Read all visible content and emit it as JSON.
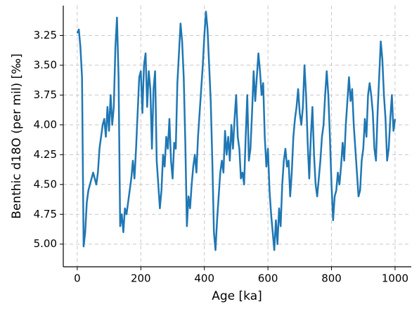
{
  "chart_data": {
    "type": "line",
    "xlabel": "Age [ka]",
    "ylabel": "Benthic d18O (per mil) [‰]",
    "color": "#1f77b4",
    "grid": true,
    "xlim": [
      -44,
      1051
    ],
    "ylim": [
      5.19,
      3.0
    ],
    "xticks": [
      0,
      200,
      400,
      600,
      800,
      1000
    ],
    "yticks": [
      3.25,
      {
        "value": 3.5,
        "label": "3.50"
      },
      3.75,
      {
        "value": 4.0,
        "label": "4.00"
      },
      4.25,
      {
        "value": 4.5,
        "label": "4.50"
      },
      4.75,
      {
        "value": 5.0,
        "label": "5.00"
      }
    ],
    "x": [
      0,
      5,
      10,
      15,
      20,
      25,
      30,
      35,
      40,
      45,
      50,
      55,
      60,
      65,
      70,
      75,
      80,
      85,
      90,
      95,
      100,
      105,
      110,
      115,
      120,
      125,
      130,
      135,
      140,
      145,
      150,
      155,
      160,
      165,
      170,
      175,
      180,
      185,
      190,
      195,
      200,
      205,
      210,
      215,
      220,
      225,
      230,
      235,
      240,
      245,
      250,
      255,
      260,
      265,
      270,
      275,
      280,
      285,
      290,
      295,
      300,
      305,
      310,
      315,
      320,
      325,
      330,
      335,
      340,
      345,
      350,
      355,
      360,
      365,
      370,
      375,
      380,
      385,
      390,
      395,
      400,
      405,
      410,
      415,
      420,
      425,
      430,
      435,
      440,
      445,
      450,
      455,
      460,
      465,
      470,
      475,
      480,
      485,
      490,
      495,
      500,
      505,
      510,
      515,
      520,
      525,
      530,
      535,
      540,
      545,
      550,
      555,
      560,
      565,
      570,
      575,
      580,
      585,
      590,
      595,
      600,
      605,
      610,
      615,
      620,
      625,
      630,
      635,
      640,
      645,
      650,
      655,
      660,
      665,
      670,
      675,
      680,
      685,
      690,
      695,
      700,
      705,
      710,
      715,
      720,
      725,
      730,
      735,
      740,
      745,
      750,
      755,
      760,
      765,
      770,
      775,
      780,
      785,
      790,
      795,
      800,
      805,
      810,
      815,
      820,
      825,
      830,
      835,
      840,
      845,
      850,
      855,
      860,
      865,
      870,
      875,
      880,
      885,
      890,
      895,
      900,
      905,
      910,
      915,
      920,
      925,
      930,
      935,
      940,
      945,
      950,
      955,
      960,
      965,
      970,
      975,
      980,
      985,
      990,
      995,
      1000
    ],
    "values": [
      3.23,
      3.2,
      3.35,
      3.6,
      5.02,
      4.9,
      4.65,
      4.55,
      4.5,
      4.45,
      4.4,
      4.45,
      4.5,
      4.4,
      4.2,
      4.1,
      4.0,
      3.95,
      4.1,
      3.85,
      4.05,
      3.75,
      4.0,
      3.85,
      3.35,
      3.1,
      3.6,
      4.85,
      4.75,
      4.9,
      4.7,
      4.75,
      4.65,
      4.55,
      4.45,
      4.3,
      4.45,
      4.2,
      3.9,
      3.6,
      3.55,
      3.9,
      3.5,
      3.4,
      3.85,
      3.55,
      3.7,
      4.2,
      3.7,
      3.55,
      4.3,
      4.5,
      4.7,
      4.55,
      4.25,
      4.35,
      4.1,
      4.2,
      3.95,
      4.3,
      4.45,
      4.15,
      4.2,
      3.65,
      3.4,
      3.15,
      3.3,
      3.6,
      4.15,
      4.85,
      4.6,
      4.7,
      4.5,
      4.35,
      4.25,
      4.4,
      4.1,
      3.9,
      3.7,
      3.5,
      3.25,
      3.05,
      3.2,
      3.5,
      3.8,
      4.3,
      4.9,
      5.05,
      4.8,
      4.6,
      4.4,
      4.3,
      4.4,
      4.05,
      4.25,
      4.1,
      4.3,
      4.0,
      4.2,
      3.95,
      3.75,
      4.1,
      4.2,
      4.45,
      4.4,
      4.5,
      4.1,
      3.75,
      4.3,
      4.2,
      3.9,
      3.55,
      3.8,
      3.6,
      3.4,
      3.55,
      3.75,
      3.65,
      4.1,
      4.35,
      4.2,
      4.55,
      4.75,
      4.9,
      5.05,
      4.8,
      5.0,
      4.7,
      4.85,
      4.5,
      4.3,
      4.2,
      4.35,
      4.3,
      4.6,
      4.4,
      4.1,
      3.95,
      3.85,
      3.7,
      3.9,
      4.0,
      3.85,
      3.5,
      3.75,
      4.15,
      4.45,
      4.1,
      3.85,
      4.25,
      4.5,
      4.6,
      4.45,
      4.3,
      4.1,
      4.0,
      3.75,
      3.55,
      3.75,
      4.1,
      4.5,
      4.8,
      4.6,
      4.55,
      4.4,
      4.5,
      4.35,
      4.15,
      4.3,
      4.0,
      3.8,
      3.6,
      3.8,
      3.7,
      4.0,
      4.2,
      4.4,
      4.6,
      4.55,
      4.3,
      4.2,
      3.95,
      4.1,
      3.75,
      3.65,
      3.75,
      3.9,
      4.2,
      4.3,
      3.9,
      3.6,
      3.3,
      3.45,
      3.75,
      3.95,
      4.3,
      4.2,
      3.95,
      3.75,
      4.05,
      3.95
    ]
  }
}
